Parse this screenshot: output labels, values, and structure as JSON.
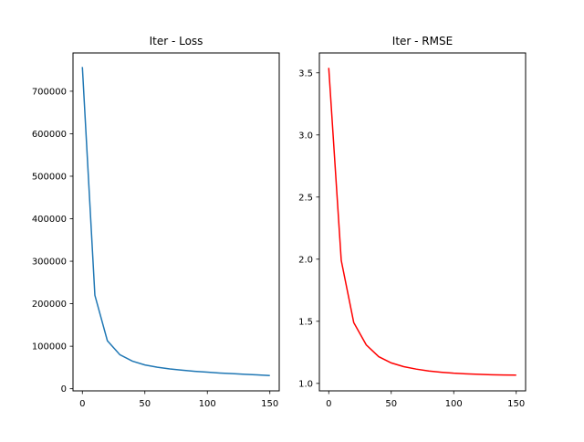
{
  "chart_data": [
    {
      "type": "line",
      "title": "Iter - Loss",
      "xlabel": "",
      "ylabel": "",
      "x": [
        0,
        10,
        20,
        30,
        40,
        50,
        60,
        70,
        80,
        90,
        100,
        110,
        120,
        130,
        140,
        150
      ],
      "series": [
        {
          "values": [
            757000,
            220000,
            113000,
            80000,
            65000,
            56000,
            50500,
            46500,
            43500,
            41000,
            39000,
            37000,
            35500,
            34000,
            32500,
            31000
          ],
          "color": "#1f77b4"
        }
      ],
      "xlim": [
        -7.5,
        157.5
      ],
      "ylim": [
        -5000,
        790000
      ],
      "xticks": [
        0,
        50,
        100,
        150
      ],
      "yticks": [
        0,
        100000,
        200000,
        300000,
        400000,
        500000,
        600000,
        700000
      ],
      "xtick_labels": [
        "0",
        "50",
        "100",
        "150"
      ],
      "ytick_labels": [
        "0",
        "100000",
        "200000",
        "300000",
        "400000",
        "500000",
        "600000",
        "700000"
      ],
      "grid": false
    },
    {
      "type": "line",
      "title": "Iter - RMSE",
      "xlabel": "",
      "ylabel": "",
      "x": [
        0,
        10,
        20,
        30,
        40,
        50,
        60,
        70,
        80,
        90,
        100,
        110,
        120,
        130,
        140,
        150
      ],
      "series": [
        {
          "values": [
            3.54,
            1.99,
            1.49,
            1.31,
            1.215,
            1.165,
            1.135,
            1.115,
            1.1,
            1.09,
            1.082,
            1.077,
            1.073,
            1.07,
            1.068,
            1.067
          ],
          "color": "#ff0000"
        }
      ],
      "xlim": [
        -7.5,
        157.5
      ],
      "ylim": [
        0.94,
        3.66
      ],
      "xticks": [
        0,
        50,
        100,
        150
      ],
      "yticks": [
        1.0,
        1.5,
        2.0,
        2.5,
        3.0,
        3.5
      ],
      "xtick_labels": [
        "0",
        "50",
        "100",
        "150"
      ],
      "ytick_labels": [
        "1.0",
        "1.5",
        "2.0",
        "2.5",
        "3.0",
        "3.5"
      ],
      "grid": false
    }
  ]
}
